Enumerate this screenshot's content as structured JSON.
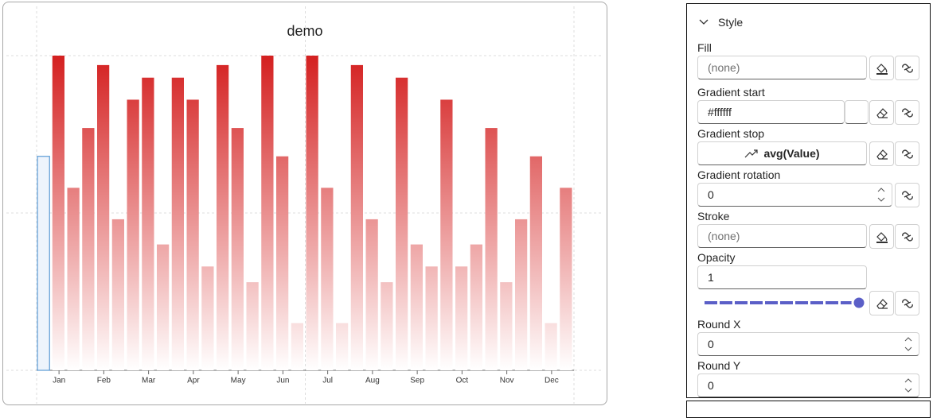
{
  "chart_data": {
    "type": "bar",
    "title": "demo",
    "categories": [
      null,
      "Jan",
      null,
      null,
      "Feb",
      null,
      null,
      "Mar",
      null,
      null,
      "Apr",
      null,
      null,
      "May",
      null,
      null,
      "Jun",
      null,
      null,
      "Jul",
      null,
      null,
      "Aug",
      null,
      null,
      "Sep",
      null,
      null,
      "Oct",
      null,
      null,
      "Nov",
      null,
      null,
      "Dec",
      null
    ],
    "values": [
      68,
      100,
      58,
      77,
      97,
      48,
      86,
      93,
      40,
      93,
      86,
      33,
      97,
      77,
      28,
      100,
      68,
      15,
      100,
      58,
      15,
      97,
      48,
      28,
      93,
      40,
      33,
      86,
      33,
      40,
      77,
      28,
      48,
      68,
      15,
      58
    ],
    "color": "#d42020",
    "ylim": [
      0,
      100
    ],
    "yticks": [
      0,
      50,
      100
    ],
    "grid": true,
    "selected_index": 0
  },
  "panel": {
    "section": "Style",
    "fill_label": "Fill",
    "fill_value": "(none)",
    "gradient_start_label": "Gradient start",
    "gradient_start_value": "#ffffff",
    "gradient_stop_label": "Gradient stop",
    "gradient_stop_value": "avg(Value)",
    "gradient_rotation_label": "Gradient rotation",
    "gradient_rotation_value": "0",
    "stroke_label": "Stroke",
    "stroke_value": "(none)",
    "opacity_label": "Opacity",
    "opacity_value": "1",
    "round_x_label": "Round X",
    "round_x_value": "0",
    "round_y_label": "Round Y",
    "round_y_value": "0"
  }
}
